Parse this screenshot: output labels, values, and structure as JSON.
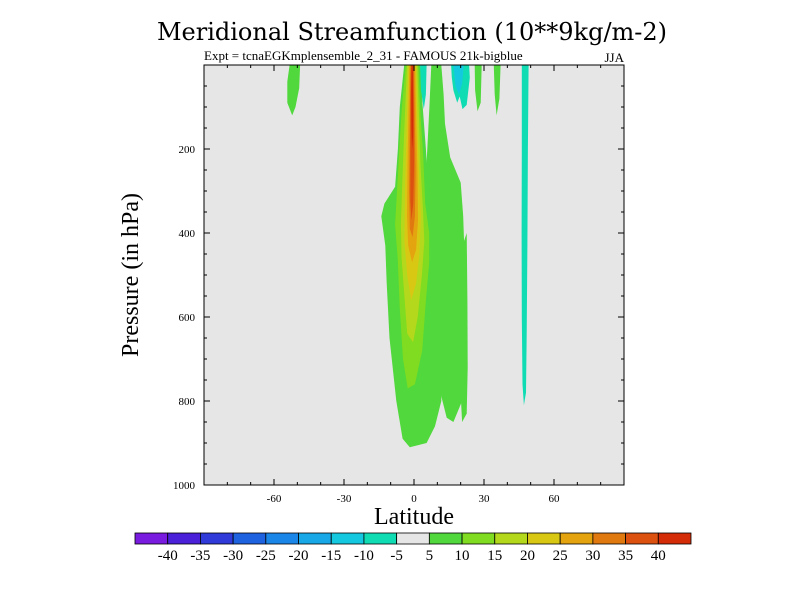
{
  "chart_data": {
    "type": "heatmap",
    "title": "Meridional Streamfunction (10**9kg/m-2)",
    "subtitle": "Expt = tcnaEGKmplensemble_2_31 - FAMOUS 21k-bigblue",
    "season": "JJA",
    "xlabel": "Latitude",
    "ylabel": "Pressure (in hPa)",
    "xlim": [
      -90,
      90
    ],
    "ylim": [
      1000,
      0
    ],
    "x_ticks": [
      -60,
      -30,
      0,
      30,
      60
    ],
    "y_ticks": [
      200,
      400,
      600,
      800,
      1000
    ],
    "grid": false,
    "background_color": "#e6e6e6",
    "colorbar": {
      "tick_labels": [
        "-40",
        "-35",
        "-30",
        "-25",
        "-20",
        "-15",
        "-10",
        "-5",
        "5",
        "10",
        "15",
        "20",
        "25",
        "30",
        "35",
        "40"
      ],
      "colors": [
        "#7a1ce0",
        "#4a20d8",
        "#2f3ad8",
        "#1e62e0",
        "#1a86e8",
        "#18a8e8",
        "#14c8e0",
        "#10dcb4",
        "#e6e6e6",
        "#50d83c",
        "#80dc20",
        "#b4d81c",
        "#d8c814",
        "#e4a410",
        "#e07a10",
        "#dc5010",
        "#d42c08"
      ]
    },
    "regions": [
      {
        "name": "left-weak-positive",
        "level": "5 to 10",
        "color": "#50d83c",
        "shape": [
          [
            -53.3,
            0
          ],
          [
            -48.8,
            0
          ],
          [
            -49.2,
            55
          ],
          [
            -50.8,
            100
          ],
          [
            -52.2,
            120
          ],
          [
            -54.3,
            90
          ],
          [
            -54.3,
            40
          ]
        ]
      },
      {
        "name": "central-positive-5",
        "level": "5 to 10",
        "color": "#50d83c",
        "shape": [
          [
            -4.2,
            0
          ],
          [
            2.7,
            0
          ],
          [
            3.6,
            90
          ],
          [
            5.1,
            200
          ],
          [
            6.4,
            330
          ],
          [
            10.0,
            500
          ],
          [
            11.7,
            660
          ],
          [
            11.7,
            800
          ],
          [
            9.0,
            860
          ],
          [
            5.4,
            900
          ],
          [
            -1.8,
            910
          ],
          [
            -4.9,
            890
          ],
          [
            -7.6,
            800
          ],
          [
            -10.5,
            650
          ],
          [
            -11.7,
            520
          ],
          [
            -12.3,
            430
          ],
          [
            -14.0,
            360
          ],
          [
            -12.7,
            330
          ],
          [
            -8.1,
            290
          ],
          [
            -6.9,
            200
          ],
          [
            -6.1,
            100
          ]
        ]
      },
      {
        "name": "right-plume-a",
        "level": "5 to 10",
        "color": "#50d83c",
        "shape": [
          [
            7.4,
            0
          ],
          [
            11.7,
            0
          ],
          [
            12.7,
            70
          ],
          [
            13.3,
            140
          ],
          [
            15.5,
            220
          ],
          [
            20.0,
            280
          ],
          [
            21.1,
            360
          ],
          [
            21.8,
            480
          ],
          [
            21.8,
            660
          ],
          [
            20.6,
            800
          ],
          [
            16.9,
            850
          ],
          [
            14.0,
            840
          ],
          [
            11.3,
            780
          ],
          [
            8.6,
            700
          ],
          [
            6.9,
            600
          ],
          [
            5.4,
            500
          ],
          [
            4.7,
            400
          ],
          [
            4.7,
            300
          ],
          [
            5.7,
            200
          ],
          [
            6.6,
            100
          ]
        ]
      },
      {
        "name": "right-plume-b",
        "level": "5 to 10",
        "color": "#50d83c",
        "shape": [
          [
            22.6,
            400
          ],
          [
            22.9,
            560
          ],
          [
            23.0,
            720
          ],
          [
            22.6,
            830
          ],
          [
            20.6,
            850
          ],
          [
            19.5,
            730
          ],
          [
            19.8,
            560
          ],
          [
            20.8,
            430
          ]
        ]
      },
      {
        "name": "right-strip-top",
        "level": "5 to 10",
        "color": "#50d83c",
        "shape": [
          [
            34.2,
            0
          ],
          [
            37.1,
            0
          ],
          [
            36.6,
            80
          ],
          [
            35.4,
            120
          ],
          [
            34.6,
            70
          ]
        ]
      },
      {
        "name": "right-strip-top-2",
        "level": "5 to 10",
        "color": "#50d83c",
        "shape": [
          [
            26.0,
            0
          ],
          [
            29.0,
            0
          ],
          [
            28.6,
            90
          ],
          [
            27.2,
            110
          ],
          [
            26.2,
            60
          ]
        ]
      },
      {
        "name": "central-positive-10",
        "level": "10 to 15",
        "color": "#80dc20",
        "shape": [
          [
            -3.5,
            0
          ],
          [
            1.9,
            0
          ],
          [
            2.8,
            120
          ],
          [
            4.0,
            220
          ],
          [
            4.8,
            330
          ],
          [
            6.5,
            400
          ],
          [
            6.5,
            470
          ],
          [
            5.1,
            560
          ],
          [
            3.5,
            680
          ],
          [
            0.4,
            760
          ],
          [
            -2.7,
            770
          ],
          [
            -4.7,
            700
          ],
          [
            -6.1,
            580
          ],
          [
            -7.0,
            460
          ],
          [
            -8.1,
            380
          ],
          [
            -7.3,
            300
          ],
          [
            -6.3,
            200
          ],
          [
            -5.2,
            100
          ]
        ]
      },
      {
        "name": "central-positive-15",
        "level": "15 to 20",
        "color": "#b4d81c",
        "shape": [
          [
            -3.0,
            0
          ],
          [
            1.4,
            0
          ],
          [
            2.1,
            120
          ],
          [
            2.8,
            240
          ],
          [
            3.8,
            340
          ],
          [
            4.4,
            420
          ],
          [
            3.4,
            500
          ],
          [
            1.6,
            600
          ],
          [
            -0.4,
            660
          ],
          [
            -2.9,
            640
          ],
          [
            -4.1,
            550
          ],
          [
            -5.3,
            460
          ],
          [
            -5.6,
            380
          ],
          [
            -5.0,
            280
          ],
          [
            -4.2,
            160
          ]
        ]
      },
      {
        "name": "central-positive-20",
        "level": "20 to 25",
        "color": "#d8c814",
        "shape": [
          [
            -2.4,
            0
          ],
          [
            0.9,
            0
          ],
          [
            1.5,
            150
          ],
          [
            2.3,
            280
          ],
          [
            2.9,
            360
          ],
          [
            2.3,
            450
          ],
          [
            0.9,
            520
          ],
          [
            -1.2,
            560
          ],
          [
            -2.9,
            500
          ],
          [
            -4.1,
            420
          ],
          [
            -3.9,
            300
          ],
          [
            -3.2,
            160
          ]
        ]
      },
      {
        "name": "central-positive-25",
        "level": "25 to 30",
        "color": "#e4a410",
        "shape": [
          [
            -2.0,
            0
          ],
          [
            0.5,
            0
          ],
          [
            1.0,
            140
          ],
          [
            1.5,
            260
          ],
          [
            1.7,
            370
          ],
          [
            0.9,
            440
          ],
          [
            -0.8,
            470
          ],
          [
            -2.5,
            430
          ],
          [
            -3.0,
            360
          ],
          [
            -2.8,
            240
          ],
          [
            -2.4,
            120
          ]
        ]
      },
      {
        "name": "central-positive-30",
        "level": "30 to 35",
        "color": "#e07a10",
        "shape": [
          [
            -1.6,
            0
          ],
          [
            0.1,
            0
          ],
          [
            0.4,
            140
          ],
          [
            0.7,
            260
          ],
          [
            0.4,
            360
          ],
          [
            -0.6,
            410
          ],
          [
            -1.8,
            390
          ],
          [
            -2.1,
            300
          ],
          [
            -1.9,
            180
          ]
        ]
      },
      {
        "name": "central-positive-35",
        "level": "35 to 40",
        "color": "#dc5010",
        "shape": [
          [
            -1.3,
            0
          ],
          [
            -0.2,
            0
          ],
          [
            0.0,
            120
          ],
          [
            0.1,
            230
          ],
          [
            -0.3,
            330
          ],
          [
            -1.1,
            370
          ],
          [
            -1.6,
            320
          ],
          [
            -1.6,
            200
          ],
          [
            -1.5,
            90
          ]
        ]
      },
      {
        "name": "central-positive-40",
        "level": "above 40",
        "color": "#d42c08",
        "shape": [
          [
            -1.0,
            0
          ],
          [
            -0.5,
            0
          ],
          [
            -0.4,
            90
          ],
          [
            -0.4,
            170
          ],
          [
            -0.8,
            200
          ],
          [
            -1.1,
            150
          ],
          [
            -1.2,
            60
          ]
        ]
      },
      {
        "name": "top-negative-a",
        "level": "-5 to -10",
        "color": "#10dcb4",
        "shape": [
          [
            2.6,
            0
          ],
          [
            5.4,
            0
          ],
          [
            5.1,
            70
          ],
          [
            4.2,
            105
          ],
          [
            3.0,
            60
          ]
        ]
      },
      {
        "name": "top-negative-b",
        "level": "-5 to -10",
        "color": "#10dcb4",
        "shape": [
          [
            15.9,
            0
          ],
          [
            23.6,
            0
          ],
          [
            23.9,
            30
          ],
          [
            22.6,
            95
          ],
          [
            20.8,
            105
          ],
          [
            19.6,
            75
          ],
          [
            18.5,
            90
          ],
          [
            16.9,
            60
          ],
          [
            16.2,
            30
          ]
        ]
      },
      {
        "name": "top-negative-b-core",
        "level": "-10 to -15",
        "color": "#14c8e0",
        "shape": [
          [
            16.9,
            0
          ],
          [
            21.3,
            0
          ],
          [
            20.6,
            45
          ],
          [
            19.3,
            70
          ],
          [
            17.8,
            50
          ]
        ]
      },
      {
        "name": "right-negative-strip",
        "level": "-5 to -10",
        "color": "#10dcb4",
        "shape": [
          [
            46.2,
            0
          ],
          [
            49.1,
            0
          ],
          [
            48.8,
            200
          ],
          [
            48.6,
            430
          ],
          [
            48.3,
            640
          ],
          [
            48.0,
            780
          ],
          [
            47.1,
            810
          ],
          [
            46.5,
            760
          ],
          [
            46.2,
            600
          ],
          [
            46.1,
            400
          ],
          [
            46.2,
            200
          ]
        ]
      }
    ]
  }
}
